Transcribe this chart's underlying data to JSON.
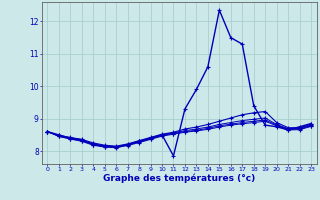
{
  "xlabel": "Graphe des températures (°c)",
  "background_color": "#cce8e8",
  "grid_color": "#aacece",
  "line_color": "#0000bb",
  "hours": [
    0,
    1,
    2,
    3,
    4,
    5,
    6,
    7,
    8,
    9,
    10,
    11,
    12,
    13,
    14,
    15,
    16,
    17,
    18,
    19,
    20,
    21,
    22,
    23
  ],
  "temp_main": [
    8.6,
    8.5,
    8.4,
    8.35,
    8.2,
    8.15,
    8.1,
    8.2,
    8.3,
    8.4,
    8.5,
    7.85,
    9.3,
    9.9,
    10.6,
    12.35,
    11.5,
    11.3,
    9.4,
    8.8,
    8.75,
    8.65,
    8.75,
    8.85
  ],
  "temp_line2": [
    8.6,
    8.48,
    8.42,
    8.36,
    8.25,
    8.18,
    8.15,
    8.22,
    8.32,
    8.42,
    8.52,
    8.58,
    8.68,
    8.74,
    8.82,
    8.92,
    9.02,
    9.12,
    9.18,
    9.22,
    8.88,
    8.72,
    8.72,
    8.82
  ],
  "temp_line3": [
    8.6,
    8.47,
    8.4,
    8.34,
    8.22,
    8.16,
    8.14,
    8.2,
    8.3,
    8.4,
    8.5,
    8.56,
    8.63,
    8.68,
    8.74,
    8.82,
    8.88,
    8.94,
    8.98,
    9.02,
    8.82,
    8.69,
    8.7,
    8.8
  ],
  "temp_line4": [
    8.6,
    8.46,
    8.38,
    8.32,
    8.2,
    8.14,
    8.13,
    8.19,
    8.28,
    8.38,
    8.48,
    8.54,
    8.6,
    8.64,
    8.7,
    8.78,
    8.83,
    8.88,
    8.92,
    8.96,
    8.8,
    8.67,
    8.68,
    8.78
  ],
  "temp_line5": [
    8.6,
    8.45,
    8.37,
    8.3,
    8.18,
    8.12,
    8.11,
    8.17,
    8.26,
    8.36,
    8.46,
    8.52,
    8.58,
    8.62,
    8.67,
    8.74,
    8.8,
    8.84,
    8.88,
    8.92,
    8.78,
    8.65,
    8.66,
    8.76
  ],
  "ylim": [
    7.6,
    12.6
  ],
  "yticks": [
    8,
    9,
    10,
    11,
    12
  ],
  "xlim": [
    -0.5,
    23.5
  ],
  "xticks": [
    0,
    1,
    2,
    3,
    4,
    5,
    6,
    7,
    8,
    9,
    10,
    11,
    12,
    13,
    14,
    15,
    16,
    17,
    18,
    19,
    20,
    21,
    22,
    23
  ]
}
